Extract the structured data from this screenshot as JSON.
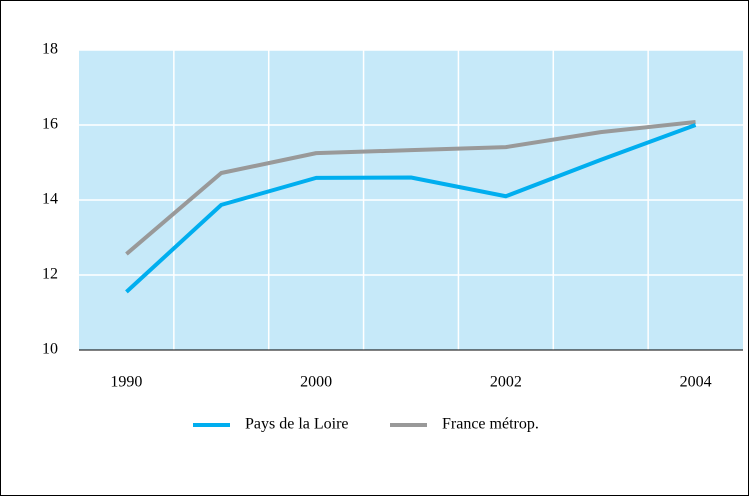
{
  "chart_data": {
    "type": "line",
    "categories": [
      "1990",
      null,
      "2000",
      null,
      "2002",
      null,
      "2004"
    ],
    "series": [
      {
        "name": "Pays de la Loire",
        "color": "#00aeef",
        "values": [
          11.55,
          13.87,
          14.59,
          14.6,
          14.1,
          15.07,
          16.0
        ]
      },
      {
        "name": "France métrop.",
        "color": "#999999",
        "values": [
          12.56,
          14.72,
          15.25,
          15.33,
          15.41,
          15.81,
          16.08
        ]
      }
    ],
    "ylim": [
      10,
      18
    ],
    "yticks": [
      10,
      12,
      14,
      16,
      18
    ],
    "grid": true
  }
}
